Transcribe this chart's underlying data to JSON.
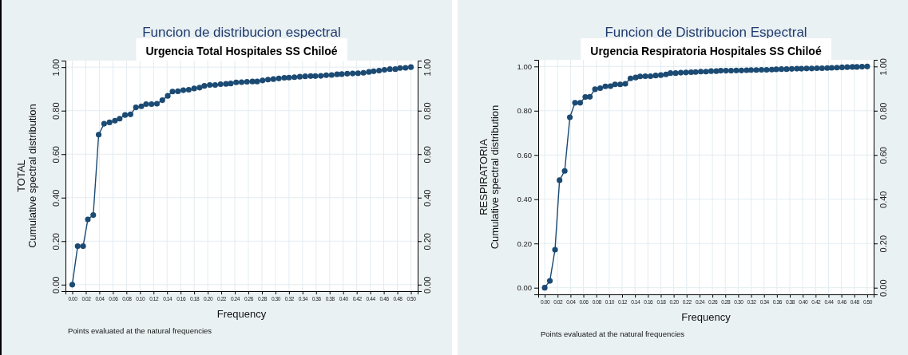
{
  "chart_data": [
    {
      "type": "line",
      "title": "Funcion de distribucion espectral",
      "subtitle": "Urgencia Total Hospitales SS Chiloé",
      "xlabel": "Frequency",
      "ylabel": "TOTAL\nCumulative spectral distribution",
      "annotations": [
        "Points evaluated at the natural frequencies"
      ],
      "x": [
        0,
        0.008,
        0.016,
        0.023,
        0.031,
        0.039,
        0.047,
        0.055,
        0.063,
        0.07,
        0.078,
        0.086,
        0.094,
        0.102,
        0.109,
        0.117,
        0.125,
        0.133,
        0.141,
        0.148,
        0.156,
        0.164,
        0.172,
        0.18,
        0.188,
        0.195,
        0.203,
        0.211,
        0.219,
        0.227,
        0.234,
        0.242,
        0.25,
        0.258,
        0.266,
        0.273,
        0.281,
        0.289,
        0.297,
        0.305,
        0.313,
        0.32,
        0.328,
        0.336,
        0.344,
        0.352,
        0.359,
        0.367,
        0.375,
        0.383,
        0.391,
        0.398,
        0.406,
        0.414,
        0.422,
        0.43,
        0.438,
        0.445,
        0.453,
        0.461,
        0.469,
        0.477,
        0.484,
        0.492,
        0.5
      ],
      "series": [
        {
          "color": "#1b4a73",
          "values": [
            0,
            0.177,
            0.177,
            0.3,
            0.32,
            0.69,
            0.74,
            0.746,
            0.754,
            0.763,
            0.78,
            0.783,
            0.815,
            0.82,
            0.83,
            0.83,
            0.832,
            0.848,
            0.868,
            0.888,
            0.889,
            0.894,
            0.896,
            0.902,
            0.906,
            0.914,
            0.918,
            0.918,
            0.922,
            0.923,
            0.925,
            0.93,
            0.931,
            0.933,
            0.934,
            0.934,
            0.939,
            0.943,
            0.945,
            0.948,
            0.951,
            0.952,
            0.954,
            0.956,
            0.958,
            0.959,
            0.959,
            0.96,
            0.963,
            0.964,
            0.967,
            0.968,
            0.97,
            0.971,
            0.972,
            0.974,
            0.978,
            0.981,
            0.984,
            0.988,
            0.991,
            0.991,
            0.996,
            0.997,
            1.0
          ]
        }
      ],
      "xlim": [
        -0.01,
        0.51
      ],
      "ylim": [
        -0.03,
        1.03
      ],
      "y2lim": [
        -0.03,
        1.03
      ],
      "xticks": [
        {
          "value": 0,
          "label": "0.00"
        },
        {
          "value": 0.02,
          "label": "0.02"
        },
        {
          "value": 0.04,
          "label": "0.04"
        },
        {
          "value": 0.06,
          "label": "0.06"
        },
        {
          "value": 0.08,
          "label": "0.08"
        },
        {
          "value": 0.1,
          "label": "0.10"
        },
        {
          "value": 0.12,
          "label": "0.12"
        },
        {
          "value": 0.14,
          "label": "0.14"
        },
        {
          "value": 0.16,
          "label": "0.16"
        },
        {
          "value": 0.18,
          "label": "0.18"
        },
        {
          "value": 0.2,
          "label": "0.20"
        },
        {
          "value": 0.22,
          "label": "0.22"
        },
        {
          "value": 0.24,
          "label": "0.24"
        },
        {
          "value": 0.26,
          "label": "0.26"
        },
        {
          "value": 0.28,
          "label": "0.28"
        },
        {
          "value": 0.3,
          "label": "0.30"
        },
        {
          "value": 0.32,
          "label": "0.32"
        },
        {
          "value": 0.34,
          "label": "0.34"
        },
        {
          "value": 0.36,
          "label": "0.36"
        },
        {
          "value": 0.38,
          "label": "0.38"
        },
        {
          "value": 0.4,
          "label": "0.40"
        },
        {
          "value": 0.42,
          "label": "0.42"
        },
        {
          "value": 0.44,
          "label": "0.44"
        },
        {
          "value": 0.46,
          "label": "0.46"
        },
        {
          "value": 0.48,
          "label": "0.48"
        },
        {
          "value": 0.5,
          "label": "0.50"
        }
      ],
      "yticks": [
        {
          "value": 0,
          "label": "0.00"
        },
        {
          "value": 0.2,
          "label": "0.20"
        },
        {
          "value": 0.4,
          "label": "0.40"
        },
        {
          "value": 0.6,
          "label": "0.60"
        },
        {
          "value": 0.8,
          "label": "0.80"
        },
        {
          "value": 1,
          "label": "1.00"
        }
      ],
      "y2ticks": [
        {
          "value": 0,
          "label": "0.00"
        },
        {
          "value": 0.2,
          "label": "0.20"
        },
        {
          "value": 0.4,
          "label": "0.40"
        },
        {
          "value": 0.6,
          "label": "0.60"
        },
        {
          "value": 0.8,
          "label": "0.80"
        },
        {
          "value": 1,
          "label": "1.00"
        }
      ],
      "grid": true,
      "marker": "circle",
      "line_style": "solid"
    },
    {
      "type": "line",
      "title": "Funcion de Distribucion Espectral",
      "subtitle": "Urgencia Respiratoria Hospitales SS Chiloé",
      "xlabel": "Frequency",
      "ylabel": "RESPIRATORIA\nCumulative spectral distribution",
      "annotations": [
        "Points evaluated at the natural frequencies"
      ],
      "x": [
        0,
        0.008,
        0.016,
        0.023,
        0.031,
        0.039,
        0.047,
        0.055,
        0.063,
        0.07,
        0.078,
        0.086,
        0.094,
        0.102,
        0.109,
        0.117,
        0.125,
        0.133,
        0.141,
        0.148,
        0.156,
        0.164,
        0.172,
        0.18,
        0.188,
        0.195,
        0.203,
        0.211,
        0.219,
        0.227,
        0.234,
        0.242,
        0.25,
        0.258,
        0.266,
        0.273,
        0.281,
        0.289,
        0.297,
        0.305,
        0.313,
        0.32,
        0.328,
        0.336,
        0.344,
        0.352,
        0.359,
        0.367,
        0.375,
        0.383,
        0.391,
        0.398,
        0.406,
        0.414,
        0.422,
        0.43,
        0.438,
        0.445,
        0.453,
        0.461,
        0.469,
        0.477,
        0.484,
        0.492,
        0.5
      ],
      "series": [
        {
          "color": "#1b4a73",
          "values": [
            0,
            0.031,
            0.172,
            0.486,
            0.528,
            0.77,
            0.836,
            0.836,
            0.862,
            0.863,
            0.897,
            0.902,
            0.91,
            0.911,
            0.919,
            0.919,
            0.922,
            0.946,
            0.95,
            0.955,
            0.956,
            0.956,
            0.959,
            0.961,
            0.964,
            0.97,
            0.97,
            0.972,
            0.973,
            0.974,
            0.975,
            0.977,
            0.977,
            0.979,
            0.979,
            0.981,
            0.981,
            0.981,
            0.982,
            0.982,
            0.983,
            0.984,
            0.984,
            0.985,
            0.985,
            0.986,
            0.987,
            0.988,
            0.988,
            0.989,
            0.99,
            0.99,
            0.991,
            0.991,
            0.992,
            0.992,
            0.993,
            0.994,
            0.995,
            0.996,
            0.997,
            0.998,
            0.998,
            0.999,
            1.0
          ]
        }
      ],
      "xlim": [
        -0.01,
        0.51
      ],
      "ylim": [
        -0.03,
        1.03
      ],
      "y2lim": [
        -0.03,
        1.03
      ],
      "xticks": [
        {
          "value": 0,
          "label": "0.00"
        },
        {
          "value": 0.02,
          "label": "0.02"
        },
        {
          "value": 0.04,
          "label": "0.04"
        },
        {
          "value": 0.06,
          "label": "0.06"
        },
        {
          "value": 0.08,
          "label": "0.08"
        },
        {
          "value": 0.1,
          "label": "0.10"
        },
        {
          "value": 0.12,
          "label": "0.12"
        },
        {
          "value": 0.14,
          "label": "0.14"
        },
        {
          "value": 0.16,
          "label": "0.16"
        },
        {
          "value": 0.18,
          "label": "0.18"
        },
        {
          "value": 0.2,
          "label": "0.20"
        },
        {
          "value": 0.22,
          "label": "0.22"
        },
        {
          "value": 0.24,
          "label": "0.24"
        },
        {
          "value": 0.26,
          "label": "0.26"
        },
        {
          "value": 0.28,
          "label": "0.28"
        },
        {
          "value": 0.3,
          "label": "0.30"
        },
        {
          "value": 0.32,
          "label": "0.32"
        },
        {
          "value": 0.34,
          "label": "0.34"
        },
        {
          "value": 0.36,
          "label": "0.36"
        },
        {
          "value": 0.38,
          "label": "0.38"
        },
        {
          "value": 0.4,
          "label": "0.40"
        },
        {
          "value": 0.42,
          "label": "0.42"
        },
        {
          "value": 0.44,
          "label": "0.44"
        },
        {
          "value": 0.46,
          "label": "0.46"
        },
        {
          "value": 0.48,
          "label": "0.48"
        },
        {
          "value": 0.5,
          "label": "0.50"
        }
      ],
      "yticks": [
        {
          "value": 0,
          "label": "0.00"
        },
        {
          "value": 0.2,
          "label": "0.20"
        },
        {
          "value": 0.4,
          "label": "0.40"
        },
        {
          "value": 0.6,
          "label": "0.60"
        },
        {
          "value": 0.8,
          "label": "0.80"
        },
        {
          "value": 1,
          "label": "1.00"
        }
      ],
      "y2ticks": [
        {
          "value": 0,
          "label": "0.00"
        },
        {
          "value": 0.2,
          "label": "0.20"
        },
        {
          "value": 0.4,
          "label": "0.40"
        },
        {
          "value": 0.6,
          "label": "0.60"
        },
        {
          "value": 0.8,
          "label": "0.80"
        },
        {
          "value": 1,
          "label": "1.00"
        }
      ],
      "grid": true,
      "marker": "circle",
      "line_style": "solid"
    }
  ]
}
